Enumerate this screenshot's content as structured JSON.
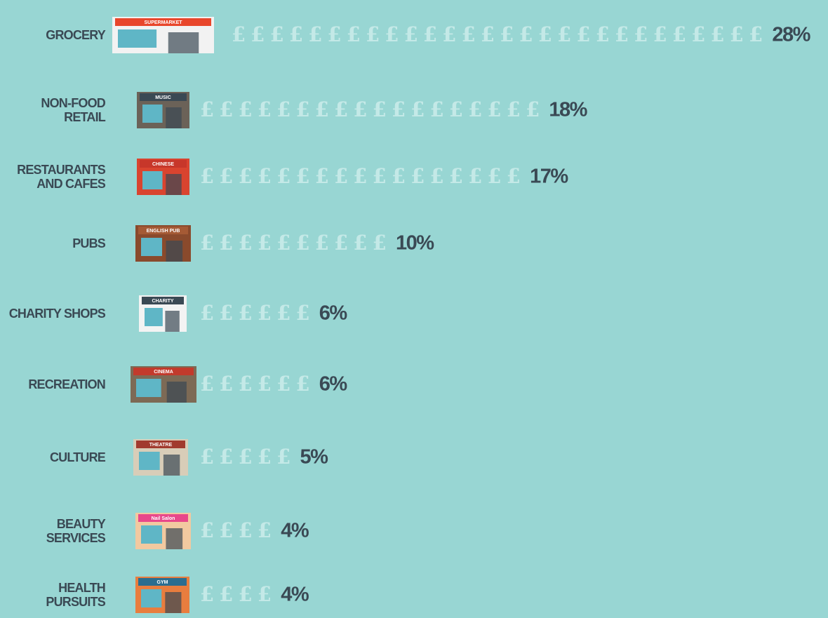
{
  "chart_data": {
    "type": "pictogram",
    "categories": [
      "GROCERY",
      "NON-FOOD RETAIL",
      "RESTAURANTS AND CAFES",
      "PUBS",
      "CHARITY SHOPS",
      "RECREATION",
      "CULTURE",
      "BEAUTY SERVICES",
      "HEALTH PURSUITS"
    ],
    "values": [
      28,
      18,
      17,
      10,
      6,
      6,
      5,
      4,
      4
    ],
    "value_labels": [
      "28%",
      "18%",
      "17%",
      "10%",
      "6%",
      "6%",
      "5%",
      "4%",
      "4%"
    ],
    "icon_color": "#c4e9e7",
    "building_signs": [
      "SUPERMARKET",
      "MUSIC",
      "CHINESE",
      "ENGLISH PUB",
      "CHARITY",
      "CINEMA",
      "THEATRE",
      "Nail Salon",
      "GYM"
    ]
  }
}
